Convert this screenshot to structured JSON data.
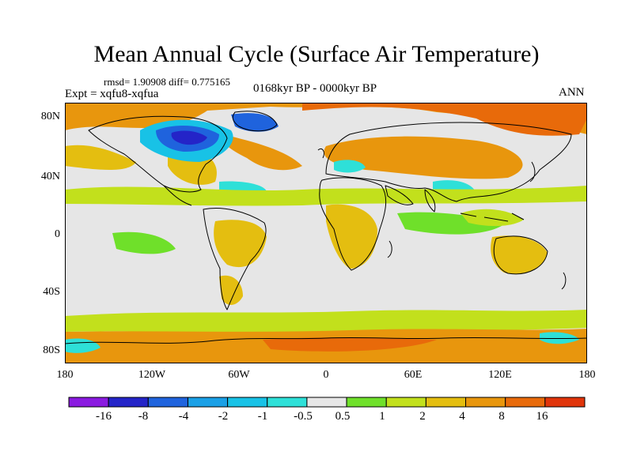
{
  "title": "Mean Annual Cycle (Surface Air Temperature)",
  "stats_line": "rmsd= 1.90908 diff= 0.775165",
  "experiment_line": "Expt = xqfu8-xqfua",
  "period": "0168kyr BP - 0000kyr BP",
  "season": "ANN",
  "lat_labels": [
    "80N",
    "40N",
    "0",
    "40S",
    "80S"
  ],
  "lon_labels": [
    "180",
    "120W",
    "60W",
    "0",
    "60E",
    "120E",
    "180"
  ],
  "colorbar": {
    "labels": [
      "-16",
      "-8",
      "-4",
      "-2",
      "-1",
      "-0.5",
      "0.5",
      "1",
      "2",
      "4",
      "8",
      "16"
    ],
    "colors": [
      "#8a1ae0",
      "#2424c8",
      "#1f63dd",
      "#1aa0e6",
      "#18c2e6",
      "#2ee0d8",
      "#e6e6e6",
      "#6fe02a",
      "#c2e01c",
      "#e4be10",
      "#e8960d",
      "#e86a0a",
      "#e0340a"
    ]
  },
  "map": {
    "colors": {
      "ocean_bg": "#e6e6e6",
      "pos_small": "#6fe02a",
      "pos_mid": "#c2e01c",
      "pos_high": "#e4be10",
      "pos_big": "#e8960d",
      "pos_huge": "#e86a0a",
      "neg_small": "#2ee0d8",
      "neg_mid": "#18c2e6",
      "neg_big": "#1f63dd",
      "neg_huge": "#2424c8"
    }
  }
}
